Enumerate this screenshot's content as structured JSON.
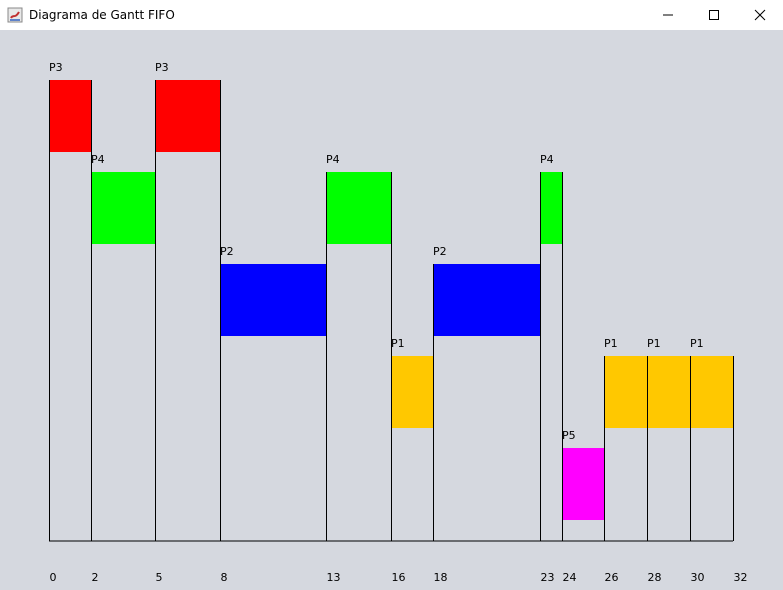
{
  "window": {
    "title": "Diagrama de Gantt FIFO",
    "controls": {
      "minimize": "minimize-icon",
      "maximize": "maximize-icon",
      "close": "close-icon"
    }
  },
  "chart_data": {
    "type": "gantt",
    "title": "",
    "xlim": [
      0,
      32
    ],
    "ticks": [
      0,
      2,
      5,
      8,
      13,
      16,
      18,
      23,
      24,
      26,
      28,
      30,
      32
    ],
    "lanes": [
      "P3",
      "P4",
      "P2",
      "P1",
      "P5"
    ],
    "colors": {
      "P3": "#ff0000",
      "P4": "#00ff00",
      "P2": "#0000ff",
      "P1": "#ffc800",
      "P5": "#ff00ff"
    },
    "segments": [
      {
        "process": "P3",
        "start": 0,
        "end": 2
      },
      {
        "process": "P4",
        "start": 2,
        "end": 5
      },
      {
        "process": "P3",
        "start": 5,
        "end": 8
      },
      {
        "process": "P2",
        "start": 8,
        "end": 13
      },
      {
        "process": "P4",
        "start": 13,
        "end": 16
      },
      {
        "process": "P1",
        "start": 16,
        "end": 18
      },
      {
        "process": "P2",
        "start": 18,
        "end": 23
      },
      {
        "process": "P4",
        "start": 23,
        "end": 24
      },
      {
        "process": "P5",
        "start": 24,
        "end": 26
      },
      {
        "process": "P1",
        "start": 26,
        "end": 28
      },
      {
        "process": "P1",
        "start": 28,
        "end": 30
      },
      {
        "process": "P1",
        "start": 30,
        "end": 32
      }
    ]
  }
}
